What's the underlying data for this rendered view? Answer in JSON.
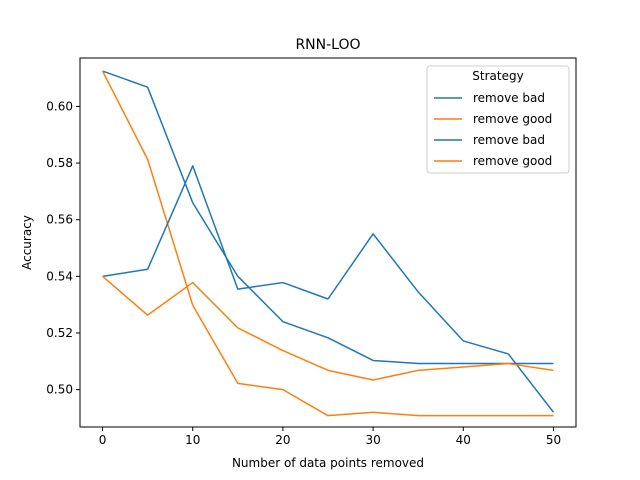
{
  "chart_data": {
    "type": "line",
    "title": "RNN-LOO",
    "xlabel": "Number of data points removed",
    "ylabel": "Accuracy",
    "x": [
      0,
      5,
      10,
      15,
      20,
      25,
      30,
      35,
      40,
      45,
      50
    ],
    "xlim": [
      -2.5,
      52.5
    ],
    "ylim": [
      0.4868,
      0.6171
    ],
    "xticks": [
      0,
      10,
      20,
      30,
      40,
      50
    ],
    "yticks": [
      0.5,
      0.52,
      0.54,
      0.56,
      0.58,
      0.6
    ],
    "ytick_labels": [
      "0.50",
      "0.52",
      "0.54",
      "0.56",
      "0.58",
      "0.60"
    ],
    "grid": false,
    "legend": {
      "title": "Strategy",
      "placement": "top-right"
    },
    "series": [
      {
        "name": "remove bad",
        "color": "#1f77b4",
        "values": [
          0.6125,
          0.6068,
          0.566,
          0.54,
          0.524,
          0.5183,
          0.5103,
          0.5092,
          0.5092,
          0.5092,
          0.5092
        ]
      },
      {
        "name": "remove good",
        "color": "#ff7f0e",
        "values": [
          0.6125,
          0.5813,
          0.5298,
          0.5022,
          0.5,
          0.4908,
          0.492,
          0.4908,
          0.4908,
          0.4908,
          0.4908
        ]
      },
      {
        "name": "remove bad",
        "color": "#1f77b4",
        "values": [
          0.54,
          0.5425,
          0.579,
          0.5355,
          0.5378,
          0.532,
          0.555,
          0.5345,
          0.5172,
          0.5126,
          0.492
        ]
      },
      {
        "name": "remove good",
        "color": "#ff7f0e",
        "values": [
          0.54,
          0.5263,
          0.5378,
          0.5218,
          0.5138,
          0.5068,
          0.5034,
          0.5068,
          0.508,
          0.5092,
          0.5068
        ]
      }
    ]
  }
}
